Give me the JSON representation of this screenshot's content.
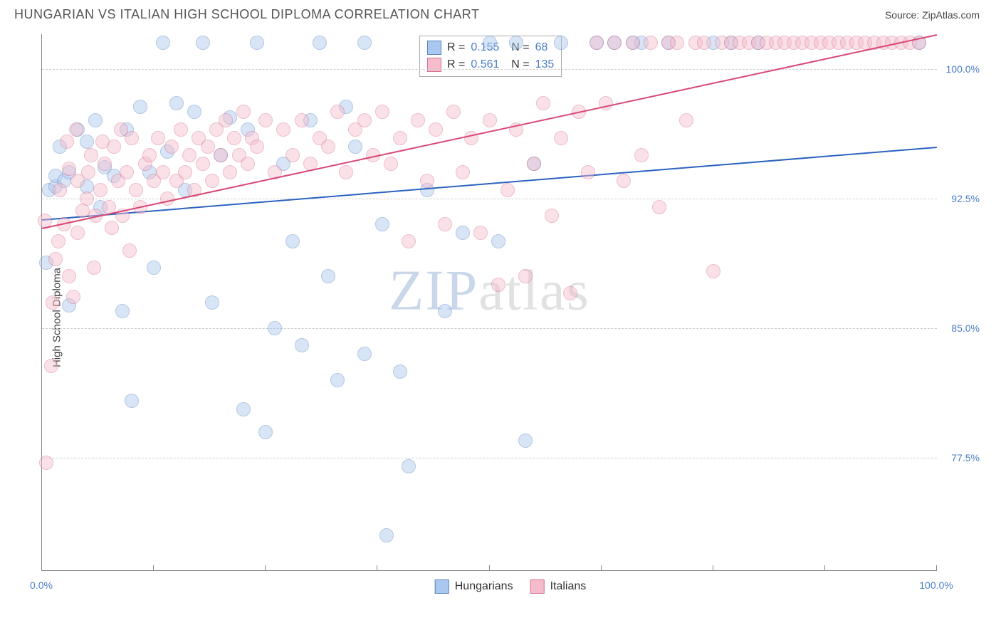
{
  "header": {
    "title": "HUNGARIAN VS ITALIAN HIGH SCHOOL DIPLOMA CORRELATION CHART",
    "source": "Source: ZipAtlas.com"
  },
  "watermark": {
    "pre": "ZIP",
    "post": "atlas"
  },
  "chart": {
    "type": "scatter",
    "y_label": "High School Diploma",
    "xlim": [
      0,
      100
    ],
    "ylim": [
      71,
      102
    ],
    "x_ticks": [
      0,
      12.5,
      25,
      37.5,
      50,
      62.5,
      75,
      87.5,
      100
    ],
    "x_tick_labels": {
      "0": "0.0%",
      "100": "100.0%"
    },
    "y_ticks": [
      77.5,
      85.0,
      92.5,
      100.0
    ],
    "y_tick_labels": [
      "77.5%",
      "85.0%",
      "92.5%",
      "100.0%"
    ],
    "background_color": "#ffffff",
    "grid_color": "#cccccc",
    "axis_color": "#888888",
    "tick_label_color": "#4a7ec7",
    "point_radius": 9,
    "point_opacity": 0.45,
    "series": [
      {
        "name": "Hungarians",
        "color": "#6a9be0",
        "fill": "#a9c7ef",
        "stroke": "#5b84bd",
        "regression": {
          "x1": 0,
          "y1": 91.3,
          "x2": 100,
          "y2": 95.5,
          "color": "#2b63c0",
          "width": 2
        },
        "stats": {
          "R": "0.155",
          "N": "68"
        },
        "points": [
          [
            0.5,
            88.8
          ],
          [
            0.8,
            93.0
          ],
          [
            1.5,
            93.2
          ],
          [
            1.5,
            93.8
          ],
          [
            2,
            95.5
          ],
          [
            2.5,
            93.5
          ],
          [
            3,
            94.0
          ],
          [
            3,
            86.3
          ],
          [
            4,
            96.5
          ],
          [
            5,
            95.8
          ],
          [
            5,
            93.2
          ],
          [
            6,
            97.0
          ],
          [
            6.5,
            92.0
          ],
          [
            7,
            94.3
          ],
          [
            8,
            93.8
          ],
          [
            9,
            86.0
          ],
          [
            9.5,
            96.5
          ],
          [
            10,
            80.8
          ],
          [
            11,
            97.8
          ],
          [
            12,
            94.0
          ],
          [
            12.5,
            88.5
          ],
          [
            13.5,
            101.5
          ],
          [
            14,
            95.2
          ],
          [
            15,
            98.0
          ],
          [
            16,
            93.0
          ],
          [
            17,
            97.5
          ],
          [
            18,
            101.5
          ],
          [
            19,
            86.5
          ],
          [
            20,
            95.0
          ],
          [
            21,
            97.2
          ],
          [
            22.5,
            80.3
          ],
          [
            23,
            96.5
          ],
          [
            24,
            101.5
          ],
          [
            25,
            79.0
          ],
          [
            26,
            85.0
          ],
          [
            27,
            94.5
          ],
          [
            28,
            90.0
          ],
          [
            29,
            84.0
          ],
          [
            30,
            97.0
          ],
          [
            31,
            101.5
          ],
          [
            32,
            88.0
          ],
          [
            33,
            82.0
          ],
          [
            34,
            97.8
          ],
          [
            35,
            95.5
          ],
          [
            36,
            101.5
          ],
          [
            36,
            83.5
          ],
          [
            38,
            91.0
          ],
          [
            38.5,
            73.0
          ],
          [
            40,
            82.5
          ],
          [
            41,
            77.0
          ],
          [
            43,
            93.0
          ],
          [
            45,
            86.0
          ],
          [
            47,
            90.5
          ],
          [
            50,
            101.5
          ],
          [
            51,
            90.0
          ],
          [
            53,
            101.5
          ],
          [
            54,
            78.5
          ],
          [
            55,
            94.5
          ],
          [
            58,
            101.5
          ],
          [
            62,
            101.5
          ],
          [
            64,
            101.5
          ],
          [
            66,
            101.5
          ],
          [
            67,
            101.5
          ],
          [
            70,
            101.5
          ],
          [
            75,
            101.5
          ],
          [
            77,
            101.5
          ],
          [
            80,
            101.5
          ],
          [
            98,
            101.5
          ]
        ]
      },
      {
        "name": "Italians",
        "color": "#e68aa6",
        "fill": "#f5bccb",
        "stroke": "#d77090",
        "regression": {
          "x1": 0,
          "y1": 90.8,
          "x2": 100,
          "y2": 102.0,
          "color": "#d94874",
          "width": 2
        },
        "stats": {
          "R": "0.561",
          "N": "135"
        },
        "points": [
          [
            0.5,
            77.2
          ],
          [
            1,
            82.8
          ],
          [
            1.2,
            86.5
          ],
          [
            1.5,
            89.0
          ],
          [
            2,
            93.0
          ],
          [
            2.5,
            91.0
          ],
          [
            3,
            88.0
          ],
          [
            3,
            94.2
          ],
          [
            3.5,
            86.8
          ],
          [
            4,
            93.5
          ],
          [
            4,
            90.5
          ],
          [
            5,
            92.5
          ],
          [
            5.2,
            94.0
          ],
          [
            5.5,
            95.0
          ],
          [
            6,
            91.5
          ],
          [
            6.5,
            93.0
          ],
          [
            7,
            94.5
          ],
          [
            7.5,
            92.0
          ],
          [
            8,
            95.5
          ],
          [
            8.5,
            93.5
          ],
          [
            9,
            91.5
          ],
          [
            9.5,
            94.0
          ],
          [
            10,
            96.0
          ],
          [
            10.5,
            93.0
          ],
          [
            11,
            92.0
          ],
          [
            11.5,
            94.5
          ],
          [
            12,
            95.0
          ],
          [
            12.5,
            93.5
          ],
          [
            13,
            96.0
          ],
          [
            13.5,
            94.0
          ],
          [
            14,
            92.5
          ],
          [
            14.5,
            95.5
          ],
          [
            15,
            93.5
          ],
          [
            15.5,
            96.5
          ],
          [
            16,
            94.0
          ],
          [
            16.5,
            95.0
          ],
          [
            17,
            93.0
          ],
          [
            17.5,
            96.0
          ],
          [
            18,
            94.5
          ],
          [
            18.5,
            95.5
          ],
          [
            19,
            93.5
          ],
          [
            19.5,
            96.5
          ],
          [
            20,
            95.0
          ],
          [
            20.5,
            97.0
          ],
          [
            21,
            94.0
          ],
          [
            21.5,
            96.0
          ],
          [
            22,
            95.0
          ],
          [
            22.5,
            97.5
          ],
          [
            23,
            94.5
          ],
          [
            23.5,
            96.0
          ],
          [
            24,
            95.5
          ],
          [
            25,
            97.0
          ],
          [
            26,
            94.0
          ],
          [
            27,
            96.5
          ],
          [
            28,
            95.0
          ],
          [
            29,
            97.0
          ],
          [
            30,
            94.5
          ],
          [
            31,
            96.0
          ],
          [
            32,
            95.5
          ],
          [
            33,
            97.5
          ],
          [
            34,
            94.0
          ],
          [
            35,
            96.5
          ],
          [
            36,
            97.0
          ],
          [
            37,
            95.0
          ],
          [
            38,
            97.5
          ],
          [
            39,
            94.5
          ],
          [
            40,
            96.0
          ],
          [
            41,
            90.0
          ],
          [
            42,
            97.0
          ],
          [
            43,
            93.5
          ],
          [
            44,
            96.5
          ],
          [
            45,
            91.0
          ],
          [
            46,
            97.5
          ],
          [
            47,
            94.0
          ],
          [
            48,
            96.0
          ],
          [
            49,
            90.5
          ],
          [
            50,
            97.0
          ],
          [
            51,
            87.5
          ],
          [
            52,
            93.0
          ],
          [
            53,
            96.5
          ],
          [
            54,
            88.0
          ],
          [
            55,
            94.5
          ],
          [
            56,
            98.0
          ],
          [
            57,
            91.5
          ],
          [
            58,
            96.0
          ],
          [
            59,
            87.0
          ],
          [
            60,
            97.5
          ],
          [
            61,
            94.0
          ],
          [
            62,
            101.5
          ],
          [
            63,
            98.0
          ],
          [
            64,
            101.5
          ],
          [
            65,
            93.5
          ],
          [
            66,
            101.5
          ],
          [
            67,
            95.0
          ],
          [
            68,
            101.5
          ],
          [
            69,
            92.0
          ],
          [
            70,
            101.5
          ],
          [
            71,
            101.5
          ],
          [
            72,
            97.0
          ],
          [
            73,
            101.5
          ],
          [
            74,
            101.5
          ],
          [
            75,
            88.3
          ],
          [
            76,
            101.5
          ],
          [
            77,
            101.5
          ],
          [
            78,
            101.5
          ],
          [
            79,
            101.5
          ],
          [
            80,
            101.5
          ],
          [
            81,
            101.5
          ],
          [
            82,
            101.5
          ],
          [
            83,
            101.5
          ],
          [
            84,
            101.5
          ],
          [
            85,
            101.5
          ],
          [
            86,
            101.5
          ],
          [
            87,
            101.5
          ],
          [
            88,
            101.5
          ],
          [
            89,
            101.5
          ],
          [
            90,
            101.5
          ],
          [
            91,
            101.5
          ],
          [
            92,
            101.5
          ],
          [
            93,
            101.5
          ],
          [
            94,
            101.5
          ],
          [
            95,
            101.5
          ],
          [
            96,
            101.5
          ],
          [
            97,
            101.5
          ],
          [
            98,
            101.5
          ],
          [
            0.3,
            91.2
          ],
          [
            1.8,
            90.0
          ],
          [
            2.8,
            95.8
          ],
          [
            3.8,
            96.5
          ],
          [
            4.5,
            91.8
          ],
          [
            5.8,
            88.5
          ],
          [
            6.8,
            95.8
          ],
          [
            7.8,
            90.8
          ],
          [
            8.8,
            96.5
          ],
          [
            9.8,
            89.5
          ]
        ]
      }
    ]
  },
  "legend": {
    "s1_label": "Hungarians",
    "s2_label": "Italians"
  }
}
